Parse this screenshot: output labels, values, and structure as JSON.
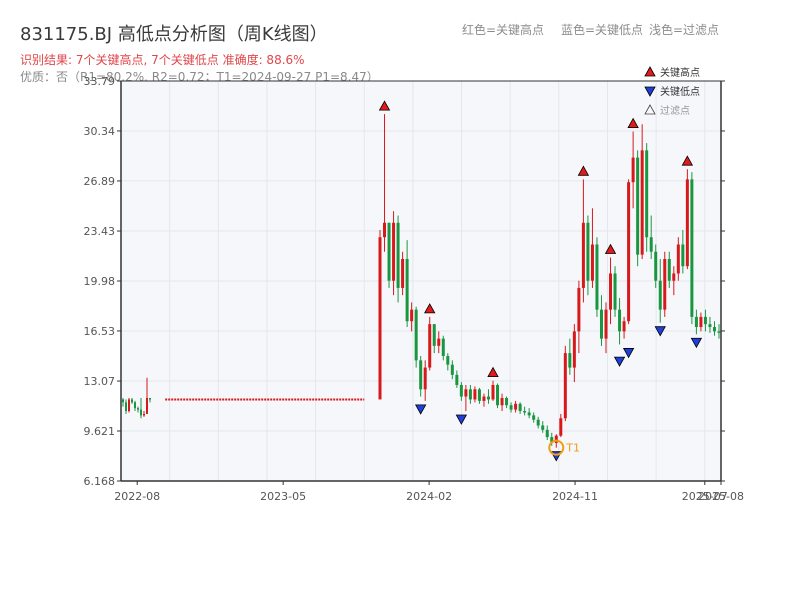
{
  "header": {
    "title": "831175.BJ 高低点分析图（周K线图）",
    "result": "识别结果: 7个关键高点, 7个关键低点  准确度: 88.6%",
    "quality": "优质：否（R1=80.2%, R2=0.72；T1=2024-09-27 P1=8.47）",
    "legend_red": "红色=关键高点",
    "legend_blue": "蓝色=关键低点",
    "legend_light": "浅色=过滤点"
  },
  "colors": {
    "up": "#d7191c",
    "down": "#1a9641",
    "high_marker": "#e31a1c",
    "low_marker": "#1f3fd6",
    "t1": "#f39c12",
    "plot_bg": "#f5f7fa",
    "grid": "#e3e7ee",
    "axis": "#333333"
  },
  "chart_data": {
    "type": "candlestick",
    "title": "831175.BJ 高低点分析图（周K线图）",
    "ylim": [
      6.168,
      33.79
    ],
    "y_ticks": [
      "33.79",
      "30.34",
      "26.89",
      "23.43",
      "19.98",
      "16.53",
      "13.07",
      "9.621",
      "6.168"
    ],
    "x_ticks": [
      "2022-08",
      "2023-05",
      "2024-02",
      "2024-11",
      "2025-07",
      "2025-08"
    ],
    "x_range": [
      "2022-07",
      "2025-08"
    ],
    "grid": true,
    "legend": [
      {
        "label": "关键高点",
        "marker": "triangle-up",
        "color": "#e31a1c"
      },
      {
        "label": "关键低点",
        "marker": "triangle-down",
        "color": "#1f3fd6"
      },
      {
        "label": "过滤点",
        "marker": "triangle-up-hollow",
        "color": "#999999"
      }
    ],
    "legend_position": "top-right",
    "segments": [
      {
        "x_start": "2022-08",
        "x_end": "2023-10",
        "close": 11.8,
        "note": "flat"
      }
    ],
    "key_highs": [
      {
        "x": "2023-10",
        "value": 31.5
      },
      {
        "x": "2024-02",
        "value": 17.5
      },
      {
        "x": "2024-05",
        "value": 13.1
      },
      {
        "x": "2024-11",
        "value": 27.0
      },
      {
        "x": "2025-01",
        "value": 21.6
      },
      {
        "x": "2025-03",
        "value": 30.3
      },
      {
        "x": "2025-05",
        "value": 27.7
      }
    ],
    "key_lows": [
      {
        "x": "2024-02",
        "value": 11.7
      },
      {
        "x": "2024-03",
        "value": 11.0
      },
      {
        "x": "2024-09",
        "value": 8.47
      },
      {
        "x": "2024-12",
        "value": 15.0
      },
      {
        "x": "2025-02",
        "value": 15.6
      },
      {
        "x": "2025-04",
        "value": 17.1
      },
      {
        "x": "2025-06",
        "value": 16.3
      }
    ],
    "t1": {
      "label": "T1",
      "x": "2024-09-27",
      "value": 8.47
    },
    "candles": [
      [
        11.8,
        11.9,
        11.3,
        11.6
      ],
      [
        11.6,
        11.8,
        10.8,
        11.0
      ],
      [
        11.0,
        11.9,
        10.9,
        11.8
      ],
      [
        11.8,
        11.9,
        11.5,
        11.6
      ],
      [
        11.6,
        11.7,
        11.0,
        11.2
      ],
      [
        11.2,
        11.3,
        10.9,
        11.1
      ],
      [
        11.1,
        11.9,
        10.5,
        10.7
      ],
      [
        10.7,
        11.0,
        10.6,
        10.8
      ],
      [
        10.8,
        13.3,
        10.8,
        11.9
      ],
      [
        11.9,
        11.9,
        11.6,
        11.8
      ],
      [
        11.8,
        23.5,
        11.8,
        23.0
      ],
      [
        23.0,
        31.5,
        22.0,
        24.0
      ],
      [
        24.0,
        24.0,
        19.5,
        20.0
      ],
      [
        20.0,
        24.8,
        19.0,
        24.0
      ],
      [
        24.0,
        24.5,
        18.5,
        19.5
      ],
      [
        19.5,
        22.0,
        19.0,
        21.5
      ],
      [
        21.5,
        22.8,
        16.8,
        17.2
      ],
      [
        17.2,
        18.5,
        16.5,
        18.0
      ],
      [
        18.0,
        18.2,
        14.0,
        14.5
      ],
      [
        14.5,
        14.8,
        12.0,
        12.5
      ],
      [
        12.5,
        14.5,
        11.7,
        14.0
      ],
      [
        14.0,
        17.5,
        13.8,
        17.0
      ],
      [
        17.0,
        17.0,
        15.0,
        15.5
      ],
      [
        15.5,
        16.5,
        15.0,
        16.0
      ],
      [
        16.0,
        16.2,
        14.5,
        14.8
      ],
      [
        14.8,
        15.0,
        13.8,
        14.2
      ],
      [
        14.2,
        14.5,
        13.2,
        13.5
      ],
      [
        13.5,
        13.8,
        12.6,
        12.8
      ],
      [
        12.8,
        13.0,
        11.7,
        12.0
      ],
      [
        12.0,
        12.8,
        11.0,
        12.5
      ],
      [
        12.5,
        12.8,
        11.5,
        11.8
      ],
      [
        11.8,
        12.7,
        11.6,
        12.5
      ],
      [
        12.5,
        12.6,
        11.5,
        11.7
      ],
      [
        11.7,
        12.2,
        11.3,
        12.0
      ],
      [
        12.0,
        12.5,
        11.5,
        11.8
      ],
      [
        11.8,
        13.1,
        11.7,
        12.8
      ],
      [
        12.8,
        12.9,
        11.2,
        11.4
      ],
      [
        11.4,
        12.2,
        11.0,
        11.9
      ],
      [
        11.9,
        12.0,
        11.2,
        11.4
      ],
      [
        11.4,
        11.6,
        10.9,
        11.1
      ],
      [
        11.1,
        11.7,
        10.9,
        11.5
      ],
      [
        11.5,
        11.6,
        10.8,
        11.0
      ],
      [
        11.0,
        11.3,
        10.7,
        10.9
      ],
      [
        10.9,
        11.2,
        10.5,
        10.7
      ],
      [
        10.7,
        10.9,
        10.2,
        10.4
      ],
      [
        10.4,
        10.6,
        9.8,
        10.0
      ],
      [
        10.0,
        10.3,
        9.5,
        9.7
      ],
      [
        9.7,
        10.0,
        9.0,
        9.2
      ],
      [
        9.2,
        9.5,
        8.6,
        8.8
      ],
      [
        8.8,
        9.4,
        8.47,
        9.3
      ],
      [
        9.3,
        10.8,
        9.2,
        10.5
      ],
      [
        10.5,
        15.5,
        10.3,
        15.0
      ],
      [
        15.0,
        16.0,
        13.5,
        14.0
      ],
      [
        14.0,
        17.0,
        13.0,
        16.5
      ],
      [
        16.5,
        20.0,
        15.0,
        19.5
      ],
      [
        19.5,
        27.0,
        18.5,
        24.0
      ],
      [
        24.0,
        24.5,
        19.0,
        20.0
      ],
      [
        20.0,
        25.0,
        19.5,
        22.5
      ],
      [
        22.5,
        23.0,
        17.5,
        18.0
      ],
      [
        18.0,
        19.0,
        15.5,
        16.0
      ],
      [
        16.0,
        18.5,
        15.0,
        18.0
      ],
      [
        18.0,
        21.6,
        17.0,
        20.5
      ],
      [
        20.5,
        21.0,
        17.5,
        18.0
      ],
      [
        18.0,
        18.8,
        15.6,
        16.5
      ],
      [
        16.5,
        17.5,
        16.0,
        17.2
      ],
      [
        17.2,
        27.0,
        17.0,
        26.8
      ],
      [
        26.8,
        30.3,
        25.0,
        28.5
      ],
      [
        28.5,
        29.0,
        21.0,
        21.8
      ],
      [
        21.8,
        30.8,
        21.5,
        29.0
      ],
      [
        29.0,
        29.5,
        22.0,
        23.0
      ],
      [
        23.0,
        24.5,
        21.5,
        22.0
      ],
      [
        22.0,
        22.5,
        19.5,
        20.0
      ],
      [
        20.0,
        21.5,
        17.1,
        18.0
      ],
      [
        18.0,
        22.0,
        17.5,
        21.5
      ],
      [
        21.5,
        22.0,
        19.5,
        20.0
      ],
      [
        20.0,
        21.0,
        19.0,
        20.5
      ],
      [
        20.5,
        23.0,
        20.0,
        22.5
      ],
      [
        22.5,
        23.5,
        20.5,
        21.0
      ],
      [
        21.0,
        27.7,
        20.8,
        27.0
      ],
      [
        27.0,
        27.5,
        17.0,
        17.5
      ],
      [
        17.5,
        18.0,
        16.3,
        16.8
      ],
      [
        16.8,
        17.8,
        16.5,
        17.5
      ],
      [
        17.5,
        18.0,
        16.5,
        17.0
      ],
      [
        17.0,
        17.5,
        16.4,
        16.8
      ],
      [
        16.8,
        17.2,
        16.2,
        16.5
      ],
      [
        16.5,
        17.0,
        16.0,
        16.4
      ]
    ]
  }
}
